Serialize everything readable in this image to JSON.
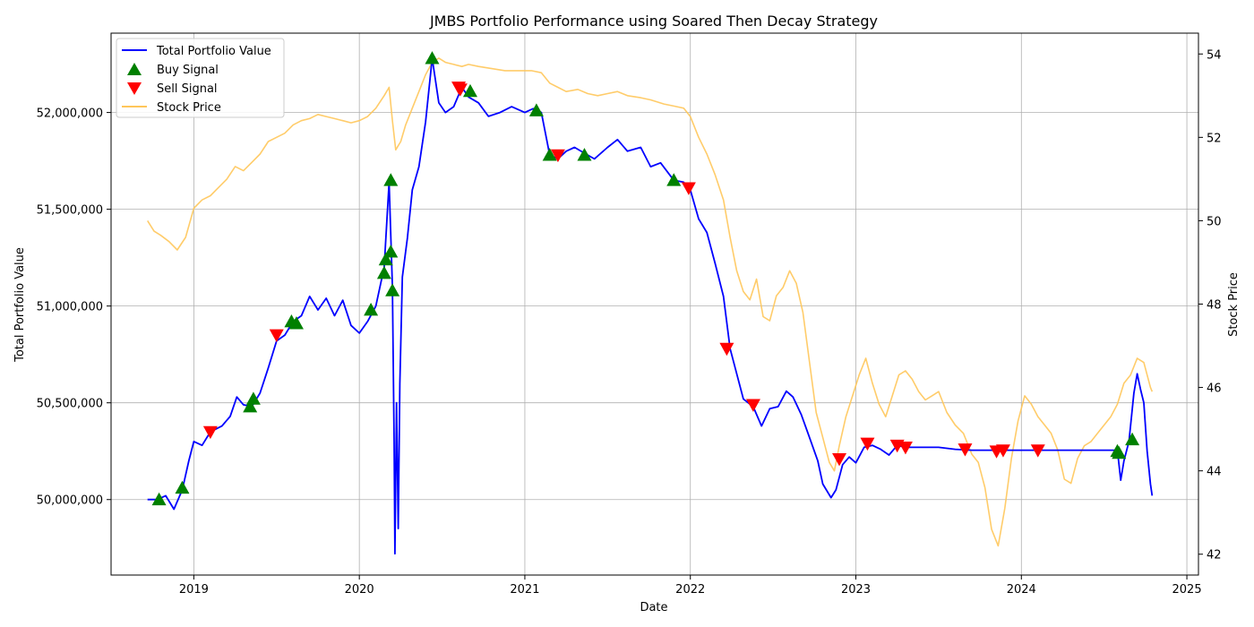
{
  "chart_data": {
    "type": "line",
    "title": "JMBS Portfolio Performance using Soared Then Decay Strategy",
    "xlabel": "Date",
    "ylabel": "Total Portfolio Value",
    "ylabel_right": "Stock Price",
    "x_ticks": [
      "2019",
      "2020",
      "2021",
      "2022",
      "2023",
      "2024",
      "2025"
    ],
    "y_ticks": [
      "50,000,000",
      "50,500,000",
      "51,000,000",
      "51,500,000",
      "52,000,000"
    ],
    "y_right_ticks": [
      "42",
      "44",
      "46",
      "48",
      "50",
      "52",
      "54"
    ],
    "xlim": [
      2018.5,
      2025.07
    ],
    "ylim": [
      49610000,
      52410000
    ],
    "ylim_right": [
      41.5,
      54.5
    ],
    "grid": true,
    "legend": "top-left",
    "legend_entries": [
      "Total Portfolio Value",
      "Buy Signal",
      "Sell Signal",
      "Stock Price"
    ],
    "colors": {
      "portfolio": "#0000ff",
      "buy": "#008000",
      "sell": "#ff0000",
      "stock": "#ffc65a"
    },
    "series": [
      {
        "name": "Total Portfolio Value",
        "axis": "left",
        "points": [
          [
            2018.72,
            50000000
          ],
          [
            2018.78,
            50000000
          ],
          [
            2018.83,
            50020000
          ],
          [
            2018.88,
            49950000
          ],
          [
            2018.93,
            50050000
          ],
          [
            2018.97,
            50200000
          ],
          [
            2019.0,
            50300000
          ],
          [
            2019.05,
            50280000
          ],
          [
            2019.1,
            50350000
          ],
          [
            2019.17,
            50380000
          ],
          [
            2019.22,
            50430000
          ],
          [
            2019.26,
            50530000
          ],
          [
            2019.3,
            50490000
          ],
          [
            2019.35,
            50480000
          ],
          [
            2019.4,
            50550000
          ],
          [
            2019.45,
            50680000
          ],
          [
            2019.5,
            50820000
          ],
          [
            2019.55,
            50850000
          ],
          [
            2019.6,
            50920000
          ],
          [
            2019.65,
            50950000
          ],
          [
            2019.7,
            51050000
          ],
          [
            2019.75,
            50980000
          ],
          [
            2019.8,
            51040000
          ],
          [
            2019.85,
            50950000
          ],
          [
            2019.9,
            51030000
          ],
          [
            2019.95,
            50900000
          ],
          [
            2020.0,
            50860000
          ],
          [
            2020.05,
            50920000
          ],
          [
            2020.1,
            51000000
          ],
          [
            2020.15,
            51200000
          ],
          [
            2020.18,
            51640000
          ],
          [
            2020.2,
            51100000
          ],
          [
            2020.21,
            50300000
          ],
          [
            2020.215,
            49720000
          ],
          [
            2020.225,
            50500000
          ],
          [
            2020.235,
            49850000
          ],
          [
            2020.245,
            50600000
          ],
          [
            2020.26,
            51150000
          ],
          [
            2020.29,
            51350000
          ],
          [
            2020.32,
            51600000
          ],
          [
            2020.36,
            51720000
          ],
          [
            2020.4,
            51950000
          ],
          [
            2020.44,
            52280000
          ],
          [
            2020.48,
            52050000
          ],
          [
            2020.52,
            52000000
          ],
          [
            2020.57,
            52030000
          ],
          [
            2020.62,
            52130000
          ],
          [
            2020.66,
            52080000
          ],
          [
            2020.72,
            52050000
          ],
          [
            2020.78,
            51980000
          ],
          [
            2020.85,
            52000000
          ],
          [
            2020.92,
            52030000
          ],
          [
            2021.0,
            52000000
          ],
          [
            2021.05,
            52020000
          ],
          [
            2021.1,
            52000000
          ],
          [
            2021.15,
            51780000
          ],
          [
            2021.2,
            51760000
          ],
          [
            2021.25,
            51800000
          ],
          [
            2021.3,
            51820000
          ],
          [
            2021.36,
            51790000
          ],
          [
            2021.42,
            51760000
          ],
          [
            2021.5,
            51820000
          ],
          [
            2021.56,
            51860000
          ],
          [
            2021.62,
            51800000
          ],
          [
            2021.7,
            51820000
          ],
          [
            2021.76,
            51720000
          ],
          [
            2021.82,
            51740000
          ],
          [
            2021.9,
            51650000
          ],
          [
            2021.96,
            51640000
          ],
          [
            2022.0,
            51600000
          ],
          [
            2022.05,
            51450000
          ],
          [
            2022.1,
            51380000
          ],
          [
            2022.15,
            51220000
          ],
          [
            2022.2,
            51050000
          ],
          [
            2022.24,
            50780000
          ],
          [
            2022.28,
            50650000
          ],
          [
            2022.32,
            50520000
          ],
          [
            2022.38,
            50480000
          ],
          [
            2022.43,
            50380000
          ],
          [
            2022.48,
            50470000
          ],
          [
            2022.53,
            50480000
          ],
          [
            2022.58,
            50560000
          ],
          [
            2022.62,
            50530000
          ],
          [
            2022.67,
            50440000
          ],
          [
            2022.72,
            50320000
          ],
          [
            2022.77,
            50200000
          ],
          [
            2022.8,
            50080000
          ],
          [
            2022.85,
            50010000
          ],
          [
            2022.88,
            50050000
          ],
          [
            2022.92,
            50180000
          ],
          [
            2022.96,
            50220000
          ],
          [
            2023.0,
            50190000
          ],
          [
            2023.05,
            50270000
          ],
          [
            2023.1,
            50280000
          ],
          [
            2023.15,
            50260000
          ],
          [
            2023.2,
            50230000
          ],
          [
            2023.25,
            50280000
          ],
          [
            2023.3,
            50270000
          ],
          [
            2023.4,
            50270000
          ],
          [
            2023.5,
            50270000
          ],
          [
            2023.6,
            50260000
          ],
          [
            2023.7,
            50255000
          ],
          [
            2023.8,
            50255000
          ],
          [
            2023.9,
            50255000
          ],
          [
            2024.0,
            50255000
          ],
          [
            2024.1,
            50255000
          ],
          [
            2024.2,
            50255000
          ],
          [
            2024.3,
            50255000
          ],
          [
            2024.4,
            50255000
          ],
          [
            2024.5,
            50255000
          ],
          [
            2024.58,
            50255000
          ],
          [
            2024.6,
            50100000
          ],
          [
            2024.62,
            50200000
          ],
          [
            2024.65,
            50300000
          ],
          [
            2024.68,
            50550000
          ],
          [
            2024.7,
            50650000
          ],
          [
            2024.72,
            50570000
          ],
          [
            2024.74,
            50500000
          ],
          [
            2024.76,
            50250000
          ],
          [
            2024.78,
            50080000
          ],
          [
            2024.79,
            50020000
          ]
        ]
      },
      {
        "name": "Stock Price",
        "axis": "right",
        "points": [
          [
            2018.72,
            50.0
          ],
          [
            2018.76,
            49.75
          ],
          [
            2018.8,
            49.65
          ],
          [
            2018.85,
            49.5
          ],
          [
            2018.9,
            49.3
          ],
          [
            2018.95,
            49.6
          ],
          [
            2019.0,
            50.3
          ],
          [
            2019.05,
            50.5
          ],
          [
            2019.1,
            50.6
          ],
          [
            2019.15,
            50.8
          ],
          [
            2019.2,
            51.0
          ],
          [
            2019.25,
            51.3
          ],
          [
            2019.3,
            51.2
          ],
          [
            2019.35,
            51.4
          ],
          [
            2019.4,
            51.6
          ],
          [
            2019.45,
            51.9
          ],
          [
            2019.5,
            52.0
          ],
          [
            2019.55,
            52.1
          ],
          [
            2019.6,
            52.3
          ],
          [
            2019.65,
            52.4
          ],
          [
            2019.7,
            52.45
          ],
          [
            2019.75,
            52.55
          ],
          [
            2019.8,
            52.5
          ],
          [
            2019.85,
            52.45
          ],
          [
            2019.9,
            52.4
          ],
          [
            2019.95,
            52.35
          ],
          [
            2020.0,
            52.4
          ],
          [
            2020.05,
            52.5
          ],
          [
            2020.1,
            52.7
          ],
          [
            2020.15,
            53.0
          ],
          [
            2020.18,
            53.2
          ],
          [
            2020.2,
            52.4
          ],
          [
            2020.22,
            51.7
          ],
          [
            2020.25,
            51.9
          ],
          [
            2020.28,
            52.3
          ],
          [
            2020.32,
            52.7
          ],
          [
            2020.36,
            53.1
          ],
          [
            2020.4,
            53.5
          ],
          [
            2020.44,
            53.8
          ],
          [
            2020.48,
            53.9
          ],
          [
            2020.52,
            53.8
          ],
          [
            2020.57,
            53.75
          ],
          [
            2020.62,
            53.7
          ],
          [
            2020.66,
            53.75
          ],
          [
            2020.72,
            53.7
          ],
          [
            2020.8,
            53.65
          ],
          [
            2020.88,
            53.6
          ],
          [
            2020.96,
            53.6
          ],
          [
            2021.04,
            53.6
          ],
          [
            2021.1,
            53.55
          ],
          [
            2021.15,
            53.3
          ],
          [
            2021.2,
            53.2
          ],
          [
            2021.25,
            53.1
          ],
          [
            2021.32,
            53.15
          ],
          [
            2021.38,
            53.05
          ],
          [
            2021.44,
            53.0
          ],
          [
            2021.5,
            53.05
          ],
          [
            2021.56,
            53.1
          ],
          [
            2021.62,
            53.0
          ],
          [
            2021.7,
            52.95
          ],
          [
            2021.76,
            52.9
          ],
          [
            2021.84,
            52.8
          ],
          [
            2021.9,
            52.75
          ],
          [
            2021.96,
            52.7
          ],
          [
            2022.0,
            52.5
          ],
          [
            2022.05,
            52.0
          ],
          [
            2022.1,
            51.6
          ],
          [
            2022.15,
            51.1
          ],
          [
            2022.2,
            50.5
          ],
          [
            2022.24,
            49.6
          ],
          [
            2022.28,
            48.8
          ],
          [
            2022.32,
            48.3
          ],
          [
            2022.36,
            48.1
          ],
          [
            2022.4,
            48.6
          ],
          [
            2022.44,
            47.7
          ],
          [
            2022.48,
            47.6
          ],
          [
            2022.52,
            48.2
          ],
          [
            2022.56,
            48.4
          ],
          [
            2022.6,
            48.8
          ],
          [
            2022.64,
            48.5
          ],
          [
            2022.68,
            47.8
          ],
          [
            2022.72,
            46.6
          ],
          [
            2022.76,
            45.4
          ],
          [
            2022.8,
            44.8
          ],
          [
            2022.84,
            44.2
          ],
          [
            2022.87,
            44.0
          ],
          [
            2022.9,
            44.6
          ],
          [
            2022.94,
            45.3
          ],
          [
            2022.98,
            45.8
          ],
          [
            2023.02,
            46.3
          ],
          [
            2023.06,
            46.7
          ],
          [
            2023.1,
            46.1
          ],
          [
            2023.14,
            45.6
          ],
          [
            2023.18,
            45.3
          ],
          [
            2023.22,
            45.8
          ],
          [
            2023.26,
            46.3
          ],
          [
            2023.3,
            46.4
          ],
          [
            2023.34,
            46.2
          ],
          [
            2023.38,
            45.9
          ],
          [
            2023.42,
            45.7
          ],
          [
            2023.46,
            45.8
          ],
          [
            2023.5,
            45.9
          ],
          [
            2023.55,
            45.4
          ],
          [
            2023.6,
            45.1
          ],
          [
            2023.65,
            44.9
          ],
          [
            2023.7,
            44.4
          ],
          [
            2023.74,
            44.2
          ],
          [
            2023.78,
            43.6
          ],
          [
            2023.82,
            42.6
          ],
          [
            2023.86,
            42.2
          ],
          [
            2023.9,
            43.1
          ],
          [
            2023.94,
            44.3
          ],
          [
            2023.98,
            45.2
          ],
          [
            2024.02,
            45.8
          ],
          [
            2024.06,
            45.6
          ],
          [
            2024.1,
            45.3
          ],
          [
            2024.14,
            45.1
          ],
          [
            2024.18,
            44.9
          ],
          [
            2024.22,
            44.5
          ],
          [
            2024.26,
            43.8
          ],
          [
            2024.3,
            43.7
          ],
          [
            2024.34,
            44.3
          ],
          [
            2024.38,
            44.6
          ],
          [
            2024.42,
            44.7
          ],
          [
            2024.46,
            44.9
          ],
          [
            2024.5,
            45.1
          ],
          [
            2024.54,
            45.3
          ],
          [
            2024.58,
            45.6
          ],
          [
            2024.62,
            46.1
          ],
          [
            2024.66,
            46.3
          ],
          [
            2024.7,
            46.7
          ],
          [
            2024.74,
            46.6
          ],
          [
            2024.78,
            46.0
          ],
          [
            2024.79,
            45.9
          ]
        ]
      }
    ],
    "buy_signals": [
      [
        2018.79,
        50000000
      ],
      [
        2018.93,
        50060000
      ],
      [
        2019.34,
        50480000
      ],
      [
        2019.36,
        50520000
      ],
      [
        2019.59,
        50920000
      ],
      [
        2019.62,
        50910000
      ],
      [
        2020.07,
        50980000
      ],
      [
        2020.15,
        51170000
      ],
      [
        2020.16,
        51240000
      ],
      [
        2020.19,
        51280000
      ],
      [
        2020.2,
        51080000
      ],
      [
        2020.19,
        51650000
      ],
      [
        2020.44,
        52280000
      ],
      [
        2020.67,
        52110000
      ],
      [
        2021.07,
        52010000
      ],
      [
        2021.15,
        51780000
      ],
      [
        2021.36,
        51780000
      ],
      [
        2021.9,
        51650000
      ],
      [
        2024.58,
        50250000
      ],
      [
        2024.59,
        50240000
      ],
      [
        2024.67,
        50310000
      ]
    ],
    "sell_signals": [
      [
        2019.1,
        50350000
      ],
      [
        2019.5,
        50850000
      ],
      [
        2020.6,
        52130000
      ],
      [
        2020.61,
        52120000
      ],
      [
        2021.2,
        51780000
      ],
      [
        2021.99,
        51610000
      ],
      [
        2022.22,
        50780000
      ],
      [
        2022.38,
        50490000
      ],
      [
        2022.9,
        50210000
      ],
      [
        2023.07,
        50290000
      ],
      [
        2023.25,
        50280000
      ],
      [
        2023.3,
        50270000
      ],
      [
        2023.66,
        50260000
      ],
      [
        2023.85,
        50250000
      ],
      [
        2023.89,
        50255000
      ],
      [
        2024.1,
        50255000
      ]
    ]
  }
}
